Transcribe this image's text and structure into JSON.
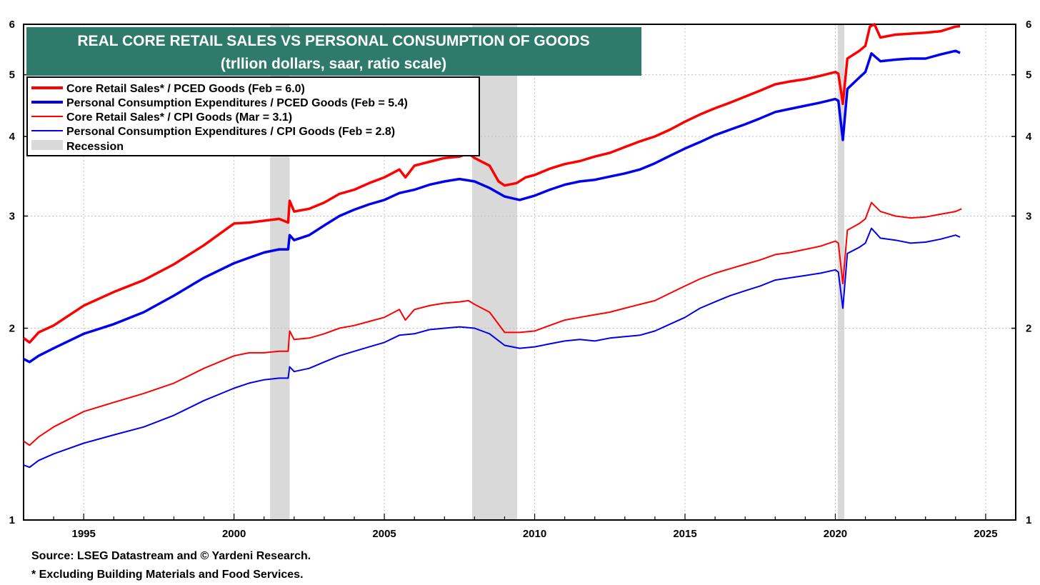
{
  "chart_data": {
    "type": "line",
    "title": "REAL CORE RETAIL SALES VS PERSONAL CONSUMPTION OF GOODS",
    "subtitle": "(trllion dollars, saar, ratio scale)",
    "xlim": [
      1993.0,
      2026.0
    ],
    "ylim": [
      1,
      6
    ],
    "scale": "log",
    "x_ticks": [
      1995,
      2000,
      2005,
      2010,
      2015,
      2020,
      2025
    ],
    "y_ticks": [
      1,
      2,
      3,
      4,
      5,
      6
    ],
    "grid": true,
    "legend_position": "top-left",
    "recessions": [
      [
        2001.2,
        2001.85
      ],
      [
        2007.92,
        2009.42
      ],
      [
        2020.08,
        2020.3
      ]
    ],
    "series": [
      {
        "name": "Core Retail Sales* / PCED Goods (Feb = 6.0)",
        "color": "#ff0000",
        "style": "thick",
        "points": [
          [
            1993.0,
            1.93
          ],
          [
            1993.2,
            1.9
          ],
          [
            1993.5,
            1.97
          ],
          [
            1994.0,
            2.02
          ],
          [
            1995.0,
            2.17
          ],
          [
            1996.0,
            2.28
          ],
          [
            1997.0,
            2.38
          ],
          [
            1998.0,
            2.52
          ],
          [
            1999.0,
            2.7
          ],
          [
            2000.0,
            2.92
          ],
          [
            2000.5,
            2.93
          ],
          [
            2001.0,
            2.95
          ],
          [
            2001.5,
            2.97
          ],
          [
            2001.8,
            2.93
          ],
          [
            2001.85,
            3.17
          ],
          [
            2002.0,
            3.05
          ],
          [
            2002.5,
            3.08
          ],
          [
            2003.0,
            3.15
          ],
          [
            2003.5,
            3.25
          ],
          [
            2004.0,
            3.3
          ],
          [
            2004.5,
            3.38
          ],
          [
            2005.0,
            3.45
          ],
          [
            2005.5,
            3.55
          ],
          [
            2005.7,
            3.45
          ],
          [
            2006.0,
            3.6
          ],
          [
            2006.5,
            3.65
          ],
          [
            2007.0,
            3.7
          ],
          [
            2007.5,
            3.72
          ],
          [
            2007.8,
            3.76
          ],
          [
            2008.0,
            3.7
          ],
          [
            2008.5,
            3.6
          ],
          [
            2008.8,
            3.4
          ],
          [
            2009.0,
            3.35
          ],
          [
            2009.4,
            3.38
          ],
          [
            2009.7,
            3.45
          ],
          [
            2010.0,
            3.48
          ],
          [
            2010.5,
            3.56
          ],
          [
            2011.0,
            3.62
          ],
          [
            2011.5,
            3.66
          ],
          [
            2012.0,
            3.72
          ],
          [
            2012.5,
            3.77
          ],
          [
            2013.0,
            3.85
          ],
          [
            2013.5,
            3.93
          ],
          [
            2014.0,
            4.0
          ],
          [
            2014.5,
            4.1
          ],
          [
            2015.0,
            4.22
          ],
          [
            2015.5,
            4.33
          ],
          [
            2016.0,
            4.43
          ],
          [
            2016.5,
            4.52
          ],
          [
            2017.0,
            4.62
          ],
          [
            2017.5,
            4.72
          ],
          [
            2018.0,
            4.83
          ],
          [
            2018.5,
            4.88
          ],
          [
            2019.0,
            4.92
          ],
          [
            2019.5,
            4.98
          ],
          [
            2020.0,
            5.05
          ],
          [
            2020.1,
            5.02
          ],
          [
            2020.25,
            4.5
          ],
          [
            2020.4,
            5.3
          ],
          [
            2020.8,
            5.45
          ],
          [
            2021.0,
            5.55
          ],
          [
            2021.15,
            5.95
          ],
          [
            2021.3,
            6.0
          ],
          [
            2021.5,
            5.72
          ],
          [
            2022.0,
            5.78
          ],
          [
            2022.5,
            5.8
          ],
          [
            2023.0,
            5.82
          ],
          [
            2023.5,
            5.85
          ],
          [
            2024.0,
            5.95
          ],
          [
            2024.15,
            5.96
          ]
        ]
      },
      {
        "name": "Personal Consumption Expenditures / PCED Goods (Feb = 5.4)",
        "color": "#0000ee",
        "style": "thick",
        "points": [
          [
            1993.0,
            1.79
          ],
          [
            1993.2,
            1.77
          ],
          [
            1993.5,
            1.81
          ],
          [
            1994.0,
            1.86
          ],
          [
            1995.0,
            1.96
          ],
          [
            1996.0,
            2.03
          ],
          [
            1997.0,
            2.12
          ],
          [
            1998.0,
            2.25
          ],
          [
            1999.0,
            2.4
          ],
          [
            2000.0,
            2.53
          ],
          [
            2000.5,
            2.58
          ],
          [
            2001.0,
            2.63
          ],
          [
            2001.5,
            2.66
          ],
          [
            2001.8,
            2.66
          ],
          [
            2001.85,
            2.8
          ],
          [
            2002.0,
            2.75
          ],
          [
            2002.5,
            2.8
          ],
          [
            2003.0,
            2.9
          ],
          [
            2003.5,
            3.0
          ],
          [
            2004.0,
            3.07
          ],
          [
            2004.5,
            3.13
          ],
          [
            2005.0,
            3.18
          ],
          [
            2005.5,
            3.26
          ],
          [
            2006.0,
            3.3
          ],
          [
            2006.5,
            3.36
          ],
          [
            2007.0,
            3.4
          ],
          [
            2007.5,
            3.43
          ],
          [
            2008.0,
            3.4
          ],
          [
            2008.5,
            3.32
          ],
          [
            2009.0,
            3.22
          ],
          [
            2009.5,
            3.18
          ],
          [
            2010.0,
            3.23
          ],
          [
            2010.5,
            3.3
          ],
          [
            2011.0,
            3.36
          ],
          [
            2011.5,
            3.4
          ],
          [
            2012.0,
            3.42
          ],
          [
            2012.5,
            3.46
          ],
          [
            2013.0,
            3.5
          ],
          [
            2013.5,
            3.55
          ],
          [
            2014.0,
            3.63
          ],
          [
            2014.5,
            3.73
          ],
          [
            2015.0,
            3.83
          ],
          [
            2015.5,
            3.92
          ],
          [
            2016.0,
            4.02
          ],
          [
            2016.5,
            4.1
          ],
          [
            2017.0,
            4.18
          ],
          [
            2017.5,
            4.27
          ],
          [
            2018.0,
            4.37
          ],
          [
            2018.5,
            4.42
          ],
          [
            2019.0,
            4.47
          ],
          [
            2019.5,
            4.52
          ],
          [
            2020.0,
            4.58
          ],
          [
            2020.1,
            4.55
          ],
          [
            2020.25,
            3.95
          ],
          [
            2020.4,
            4.75
          ],
          [
            2020.8,
            4.95
          ],
          [
            2021.0,
            5.05
          ],
          [
            2021.2,
            5.4
          ],
          [
            2021.5,
            5.25
          ],
          [
            2022.0,
            5.28
          ],
          [
            2022.5,
            5.3
          ],
          [
            2023.0,
            5.3
          ],
          [
            2023.5,
            5.38
          ],
          [
            2024.0,
            5.45
          ],
          [
            2024.15,
            5.41
          ]
        ]
      },
      {
        "name": "Core Retail Sales* / CPI Goods (Mar = 3.1)",
        "color": "#ff0000",
        "style": "thin",
        "points": [
          [
            1993.0,
            1.33
          ],
          [
            1993.2,
            1.31
          ],
          [
            1993.5,
            1.35
          ],
          [
            1994.0,
            1.4
          ],
          [
            1995.0,
            1.48
          ],
          [
            1996.0,
            1.53
          ],
          [
            1997.0,
            1.58
          ],
          [
            1998.0,
            1.64
          ],
          [
            1999.0,
            1.73
          ],
          [
            2000.0,
            1.81
          ],
          [
            2000.5,
            1.83
          ],
          [
            2001.0,
            1.83
          ],
          [
            2001.5,
            1.84
          ],
          [
            2001.8,
            1.84
          ],
          [
            2001.85,
            1.98
          ],
          [
            2002.0,
            1.92
          ],
          [
            2002.5,
            1.93
          ],
          [
            2003.0,
            1.96
          ],
          [
            2003.5,
            2.0
          ],
          [
            2004.0,
            2.02
          ],
          [
            2004.5,
            2.05
          ],
          [
            2005.0,
            2.08
          ],
          [
            2005.5,
            2.14
          ],
          [
            2005.7,
            2.06
          ],
          [
            2006.0,
            2.14
          ],
          [
            2006.5,
            2.17
          ],
          [
            2007.0,
            2.19
          ],
          [
            2007.5,
            2.2
          ],
          [
            2007.8,
            2.21
          ],
          [
            2008.0,
            2.18
          ],
          [
            2008.5,
            2.12
          ],
          [
            2009.0,
            1.97
          ],
          [
            2009.5,
            1.97
          ],
          [
            2010.0,
            1.98
          ],
          [
            2010.5,
            2.02
          ],
          [
            2011.0,
            2.06
          ],
          [
            2011.5,
            2.08
          ],
          [
            2012.0,
            2.1
          ],
          [
            2012.5,
            2.12
          ],
          [
            2013.0,
            2.15
          ],
          [
            2013.5,
            2.18
          ],
          [
            2014.0,
            2.21
          ],
          [
            2014.5,
            2.27
          ],
          [
            2015.0,
            2.33
          ],
          [
            2015.5,
            2.39
          ],
          [
            2016.0,
            2.44
          ],
          [
            2016.5,
            2.48
          ],
          [
            2017.0,
            2.52
          ],
          [
            2017.5,
            2.56
          ],
          [
            2018.0,
            2.61
          ],
          [
            2018.5,
            2.63
          ],
          [
            2019.0,
            2.66
          ],
          [
            2019.5,
            2.69
          ],
          [
            2020.0,
            2.74
          ],
          [
            2020.1,
            2.72
          ],
          [
            2020.25,
            2.35
          ],
          [
            2020.4,
            2.85
          ],
          [
            2020.8,
            2.92
          ],
          [
            2021.0,
            2.97
          ],
          [
            2021.2,
            3.15
          ],
          [
            2021.5,
            3.05
          ],
          [
            2022.0,
            3.0
          ],
          [
            2022.5,
            2.98
          ],
          [
            2023.0,
            2.99
          ],
          [
            2023.5,
            3.02
          ],
          [
            2024.0,
            3.05
          ],
          [
            2024.2,
            3.08
          ]
        ]
      },
      {
        "name": "Personal Consumption Expenditures / CPI Goods (Feb = 2.8)",
        "color": "#0000ee",
        "style": "thin",
        "points": [
          [
            1993.0,
            1.22
          ],
          [
            1993.2,
            1.21
          ],
          [
            1993.5,
            1.24
          ],
          [
            1994.0,
            1.27
          ],
          [
            1995.0,
            1.32
          ],
          [
            1996.0,
            1.36
          ],
          [
            1997.0,
            1.4
          ],
          [
            1998.0,
            1.46
          ],
          [
            1999.0,
            1.54
          ],
          [
            2000.0,
            1.61
          ],
          [
            2000.5,
            1.64
          ],
          [
            2001.0,
            1.66
          ],
          [
            2001.5,
            1.67
          ],
          [
            2001.8,
            1.67
          ],
          [
            2001.85,
            1.74
          ],
          [
            2002.0,
            1.71
          ],
          [
            2002.5,
            1.73
          ],
          [
            2003.0,
            1.77
          ],
          [
            2003.5,
            1.81
          ],
          [
            2004.0,
            1.84
          ],
          [
            2004.5,
            1.87
          ],
          [
            2005.0,
            1.9
          ],
          [
            2005.5,
            1.95
          ],
          [
            2006.0,
            1.96
          ],
          [
            2006.5,
            1.99
          ],
          [
            2007.0,
            2.0
          ],
          [
            2007.5,
            2.01
          ],
          [
            2008.0,
            2.0
          ],
          [
            2008.5,
            1.96
          ],
          [
            2009.0,
            1.88
          ],
          [
            2009.5,
            1.86
          ],
          [
            2010.0,
            1.87
          ],
          [
            2010.5,
            1.89
          ],
          [
            2011.0,
            1.91
          ],
          [
            2011.5,
            1.92
          ],
          [
            2012.0,
            1.91
          ],
          [
            2012.5,
            1.93
          ],
          [
            2013.0,
            1.94
          ],
          [
            2013.5,
            1.95
          ],
          [
            2014.0,
            1.98
          ],
          [
            2014.5,
            2.03
          ],
          [
            2015.0,
            2.08
          ],
          [
            2015.5,
            2.15
          ],
          [
            2016.0,
            2.2
          ],
          [
            2016.5,
            2.25
          ],
          [
            2017.0,
            2.29
          ],
          [
            2017.5,
            2.33
          ],
          [
            2018.0,
            2.38
          ],
          [
            2018.5,
            2.4
          ],
          [
            2019.0,
            2.42
          ],
          [
            2019.5,
            2.44
          ],
          [
            2020.0,
            2.47
          ],
          [
            2020.1,
            2.45
          ],
          [
            2020.25,
            2.15
          ],
          [
            2020.4,
            2.62
          ],
          [
            2020.8,
            2.68
          ],
          [
            2021.0,
            2.72
          ],
          [
            2021.2,
            2.87
          ],
          [
            2021.5,
            2.77
          ],
          [
            2022.0,
            2.75
          ],
          [
            2022.5,
            2.72
          ],
          [
            2023.0,
            2.73
          ],
          [
            2023.5,
            2.76
          ],
          [
            2024.0,
            2.8
          ],
          [
            2024.15,
            2.78
          ]
        ]
      }
    ],
    "legend_recession": "Recession",
    "source": "Source: LSEG Datastream and © Yardeni Research.",
    "footnote": "* Excluding Building Materials and Food Services."
  },
  "colors": {
    "title_bg": "#2e7b6b",
    "recession": "#d9d9d9",
    "grid": "#c0c0c0"
  }
}
